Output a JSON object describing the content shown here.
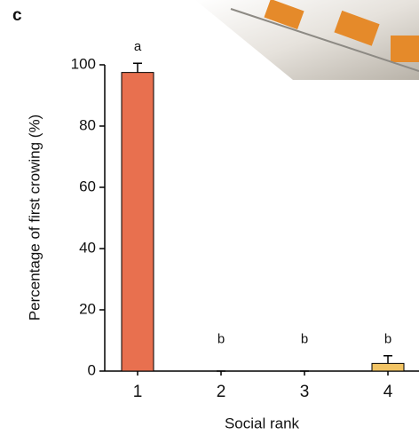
{
  "panel_label": "c",
  "chart_data": {
    "type": "bar",
    "xlabel": "Social rank",
    "ylabel": "Percentage of first crowing (%)",
    "categories": [
      "1",
      "2",
      "3",
      "4"
    ],
    "values": [
      97.5,
      0,
      0,
      2.5
    ],
    "errors": [
      3,
      0,
      0,
      2.5
    ],
    "annotations": [
      "a",
      "b",
      "b",
      "b"
    ],
    "colors": [
      "#e8704f",
      "#e8704f",
      "#e8704f",
      "#f2c464"
    ],
    "ylim": [
      0,
      100
    ],
    "yticks": [
      0,
      20,
      40,
      60,
      80,
      100
    ],
    "grid": false
  }
}
